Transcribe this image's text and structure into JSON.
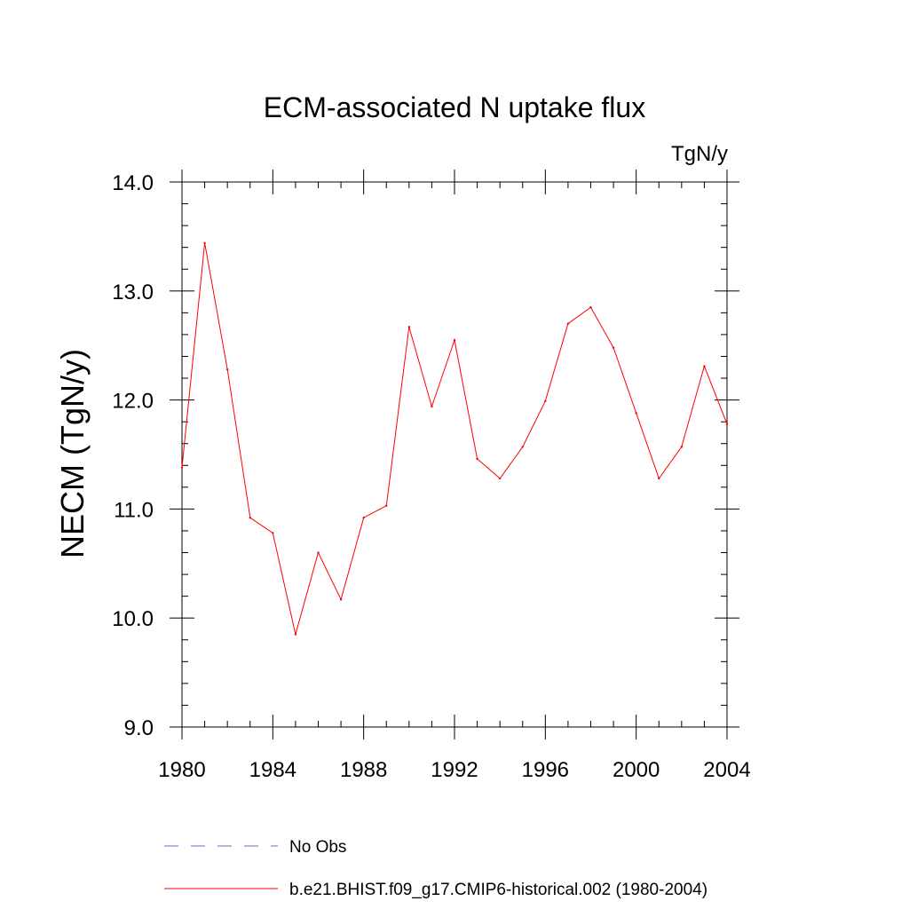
{
  "chart_data": {
    "type": "line",
    "title": "ECM-associated N uptake flux",
    "units_label": "TgN/y",
    "ylabel": "NECM  (TgN/y)",
    "xlabel": "",
    "xlim": [
      1980,
      2004
    ],
    "ylim": [
      9.0,
      14.0
    ],
    "x_ticks": [
      1980,
      1984,
      1988,
      1992,
      1996,
      2000,
      2004
    ],
    "x_tick_labels": [
      "1980",
      "1984",
      "1988",
      "1992",
      "1996",
      "2000",
      "2004"
    ],
    "y_ticks": [
      9.0,
      10.0,
      11.0,
      12.0,
      13.0,
      14.0
    ],
    "y_tick_labels": [
      "9.0",
      "10.0",
      "11.0",
      "12.0",
      "13.0",
      "14.0"
    ],
    "grid": false,
    "legend_position": "bottom",
    "series": [
      {
        "name": "b.e21.BHIST.f09_g17.CMIP6-historical.002 (1980-2004)",
        "color": "#ff0000",
        "line_style": "solid",
        "x": [
          1980,
          1981,
          1982,
          1983,
          1984,
          1985,
          1986,
          1987,
          1988,
          1989,
          1990,
          1991,
          1992,
          1993,
          1994,
          1995,
          1996,
          1997,
          1998,
          1999,
          2000,
          2001,
          2002,
          2003,
          2004
        ],
        "values": [
          11.38,
          13.44,
          12.28,
          10.92,
          10.78,
          9.85,
          10.6,
          10.17,
          10.92,
          11.03,
          12.67,
          11.94,
          12.55,
          11.46,
          11.28,
          11.57,
          11.99,
          12.7,
          12.85,
          12.48,
          11.88,
          11.28,
          11.57,
          12.31,
          11.78
        ]
      },
      {
        "name": "No Obs",
        "color": "#6a6ac8",
        "line_style": "dashed",
        "x": [],
        "values": []
      }
    ]
  }
}
